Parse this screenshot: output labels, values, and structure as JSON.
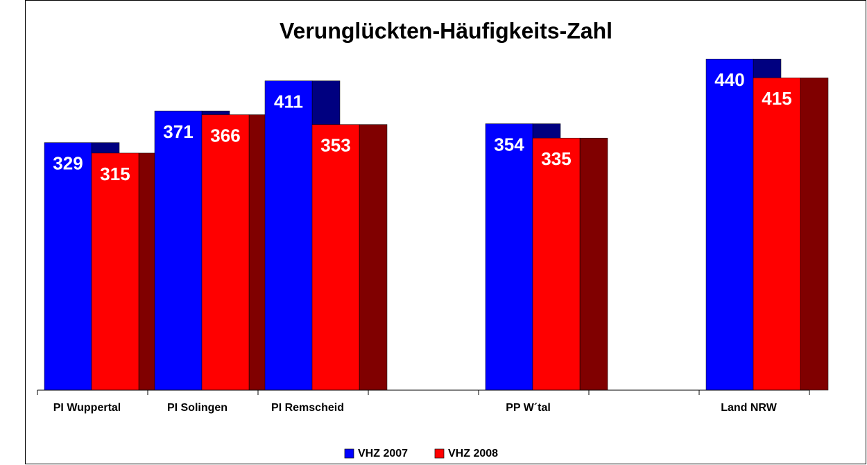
{
  "chart_data": {
    "type": "bar",
    "title": "Verunglückten-Häufigkeits-Zahl",
    "categories": [
      "PI Wuppertal",
      "PI Solingen",
      "PI Remscheid",
      null,
      "PP W´tal",
      null,
      "Land NRW"
    ],
    "series": [
      {
        "name": "VHZ 2007",
        "color": "#0000ff",
        "shade": "#000080",
        "values": [
          329,
          371,
          411,
          null,
          354,
          null,
          440
        ]
      },
      {
        "name": "VHZ 2008",
        "color": "#ff0000",
        "shade": "#800000",
        "values": [
          315,
          366,
          353,
          null,
          335,
          null,
          415
        ]
      }
    ],
    "ylim": [
      0,
      500
    ],
    "legend": "bottom"
  }
}
